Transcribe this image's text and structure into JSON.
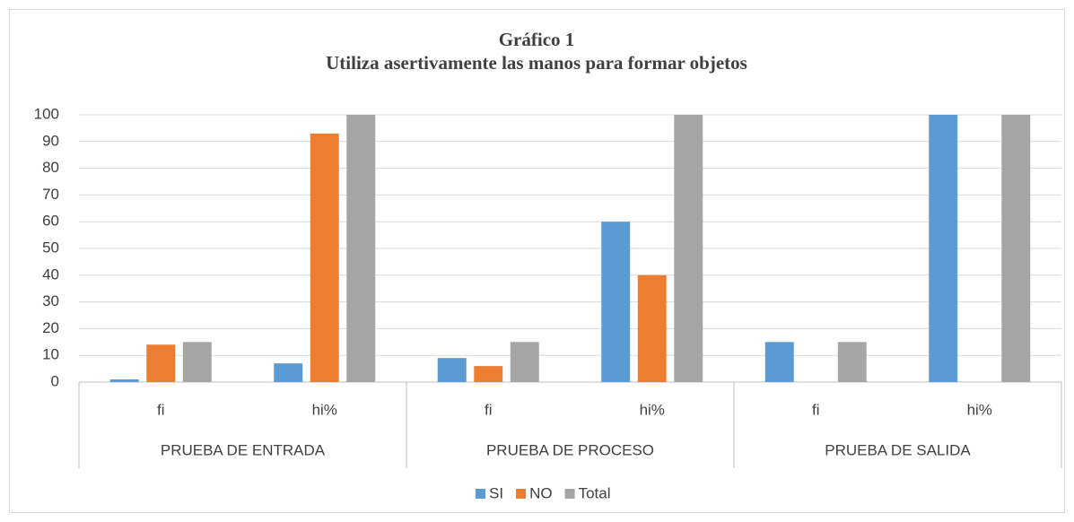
{
  "chart_data": {
    "type": "bar",
    "title": "Gráfico 1",
    "subtitle": "Utiliza asertivamente las manos para formar objetos",
    "categories": [
      "fi",
      "hi%",
      "fi",
      "hi%",
      "fi",
      "hi%"
    ],
    "groups": [
      "PRUEBA DE ENTRADA",
      "PRUEBA DE PROCESO",
      "PRUEBA DE SALIDA"
    ],
    "series": [
      {
        "name": "SI",
        "color": "#5b9bd5",
        "values": [
          1,
          7,
          9,
          60,
          15,
          100
        ]
      },
      {
        "name": "NO",
        "color": "#ed7d31",
        "values": [
          14,
          93,
          6,
          40,
          0,
          0
        ]
      },
      {
        "name": "Total",
        "color": "#a5a5a5",
        "values": [
          15,
          100,
          15,
          100,
          15,
          100
        ]
      }
    ],
    "ylim": [
      0,
      100
    ],
    "yticks": [
      0,
      10,
      20,
      30,
      40,
      50,
      60,
      70,
      80,
      90,
      100
    ],
    "grid": true,
    "legend": "bottom"
  }
}
